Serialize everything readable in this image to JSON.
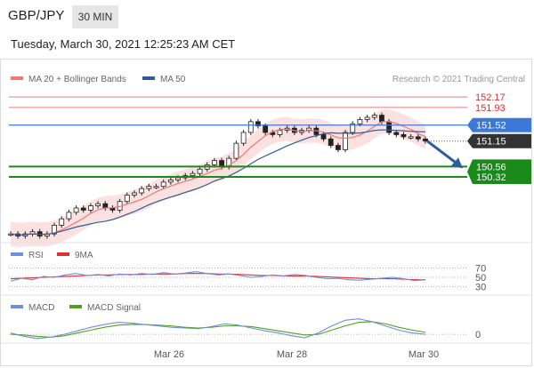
{
  "header": {
    "pair": "GBP/JPY",
    "timeframe": "30 MIN",
    "datetime": "Tuesday, March 30, 2021 12:25:23 AM CET",
    "credit": "Research © 2021 Trading Central"
  },
  "colors": {
    "ma20": "#f07878",
    "bollinger_fill": "#fbdcdc",
    "ma50": "#2f5c9b",
    "resistance": "#f07878",
    "pivot": "#3c78d8",
    "support": "#1a8a1a",
    "price_tag": "#333333",
    "rsi": "#6d8fe0",
    "rsi_ma": "#e03030",
    "macd": "#6d8fe0",
    "macd_signal": "#50a020",
    "arrow": "#2f5c9b"
  },
  "chart_data": [
    {
      "type": "candlestick",
      "title": "GBP/JPY",
      "legend": [
        "MA 20 + Bollinger Bands",
        "MA 50"
      ],
      "legend_position": "top-left",
      "x_tick_labels": [
        "Mar 26",
        "Mar 28",
        "Mar 30"
      ],
      "ylim": [
        148.9,
        152.4
      ],
      "close_series": [
        149.0,
        148.95,
        149.0,
        149.05,
        148.95,
        149.0,
        149.2,
        149.35,
        149.5,
        149.6,
        149.55,
        149.65,
        149.7,
        149.6,
        149.55,
        149.75,
        149.9,
        149.95,
        150.05,
        150.1,
        150.1,
        150.2,
        150.25,
        150.3,
        150.35,
        150.4,
        150.5,
        150.6,
        150.7,
        150.55,
        150.75,
        151.1,
        151.35,
        151.6,
        151.5,
        151.35,
        151.3,
        151.4,
        151.45,
        151.35,
        151.4,
        151.45,
        151.3,
        151.2,
        151.05,
        150.95,
        151.35,
        151.55,
        151.65,
        151.7,
        151.75,
        151.6,
        151.35,
        151.3,
        151.25,
        151.25,
        151.2,
        151.15
      ],
      "levels": [
        {
          "label": "152.17",
          "value": 152.17,
          "kind": "resistance"
        },
        {
          "label": "151.93",
          "value": 151.93,
          "kind": "resistance"
        },
        {
          "label": "151.52",
          "value": 151.52,
          "kind": "pivot"
        },
        {
          "label": "151.15",
          "value": 151.15,
          "kind": "last_price"
        },
        {
          "label": "150.56",
          "value": 150.56,
          "kind": "support"
        },
        {
          "label": "150.32",
          "value": 150.32,
          "kind": "support"
        }
      ],
      "forecast": "down toward 150.56"
    },
    {
      "type": "line",
      "title": "RSI",
      "legend": [
        "RSI",
        "9MA"
      ],
      "legend_position": "top-left",
      "y_ticks": [
        "70",
        "50",
        "30"
      ],
      "ylim": [
        20,
        80
      ],
      "rsi_values": [
        42,
        48,
        45,
        52,
        50,
        55,
        58,
        54,
        56,
        53,
        57,
        55,
        58,
        56,
        60,
        57,
        59,
        62,
        58,
        55,
        57,
        54,
        50,
        52,
        55,
        53,
        56,
        54,
        50,
        47,
        48,
        45,
        44,
        46,
        48,
        50,
        47,
        43,
        45
      ],
      "ma_values": [
        47,
        48,
        49,
        50,
        51,
        52,
        53,
        54,
        55,
        55,
        56,
        56,
        56,
        57,
        57,
        57,
        58,
        58,
        58,
        57,
        57,
        56,
        55,
        54,
        54,
        53,
        53,
        53,
        52,
        51,
        50,
        49,
        48,
        47,
        47,
        47,
        46,
        45,
        45
      ]
    },
    {
      "type": "line",
      "title": "MACD",
      "legend": [
        "MACD",
        "MACD Signal"
      ],
      "legend_position": "top-left",
      "y_ticks": [
        "0"
      ],
      "macd_values": [
        0.02,
        -0.03,
        -0.06,
        -0.04,
        0.0,
        0.05,
        0.1,
        0.14,
        0.17,
        0.16,
        0.14,
        0.12,
        0.1,
        0.09,
        0.08,
        0.11,
        0.15,
        0.13,
        0.09,
        0.05,
        0.02,
        -0.02,
        -0.05,
        0.02,
        0.12,
        0.2,
        0.22,
        0.18,
        0.12,
        0.06,
        0.02,
        0.0
      ],
      "signal_values": [
        0.0,
        -0.01,
        -0.03,
        -0.04,
        -0.02,
        0.02,
        0.06,
        0.1,
        0.13,
        0.14,
        0.14,
        0.13,
        0.12,
        0.1,
        0.09,
        0.1,
        0.12,
        0.12,
        0.11,
        0.08,
        0.05,
        0.02,
        -0.01,
        0.0,
        0.06,
        0.12,
        0.17,
        0.18,
        0.15,
        0.1,
        0.06,
        0.03
      ]
    }
  ]
}
